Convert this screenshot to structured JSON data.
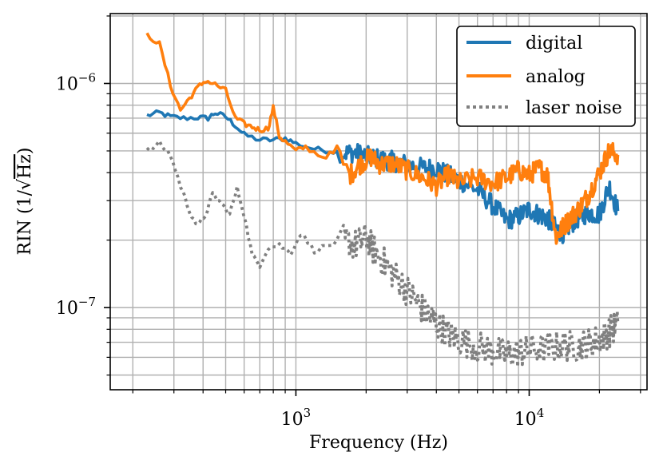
{
  "chart_data": {
    "type": "line",
    "title": "",
    "xlabel": "Frequency (Hz)",
    "ylabel": "RIN (1/√Hz)",
    "ylabel_prefix": "RIN (1/",
    "ylabel_root": "Hz",
    "ylabel_suffix": ")",
    "xscale": "log",
    "yscale": "log",
    "xlim": [
      160,
      32000
    ],
    "ylim": [
      4.3e-08,
      2.05e-06
    ],
    "grid": true,
    "legend_position": "top-right",
    "x_tick_labels": [
      {
        "value": 1000,
        "base": "10",
        "exp": "3"
      },
      {
        "value": 10000,
        "base": "10",
        "exp": "4"
      }
    ],
    "y_tick_labels": [
      {
        "value": 1e-07,
        "base": "10",
        "exp": "−7"
      },
      {
        "value": 1e-06,
        "base": "10",
        "exp": "−6"
      }
    ],
    "series": [
      {
        "name": "digital",
        "color": "#1f77b4",
        "style": "solid",
        "points": [
          [
            230,
            7.2e-07
          ],
          [
            260,
            7.4e-07
          ],
          [
            290,
            7.1e-07
          ],
          [
            330,
            7e-07
          ],
          [
            380,
            7.05e-07
          ],
          [
            420,
            7e-07
          ],
          [
            450,
            7.4e-07
          ],
          [
            500,
            7.1e-07
          ],
          [
            550,
            6.5e-07
          ],
          [
            600,
            5.9e-07
          ],
          [
            700,
            5.6e-07
          ],
          [
            800,
            5.6e-07
          ],
          [
            900,
            5.7e-07
          ],
          [
            1000,
            5.4e-07
          ],
          [
            1200,
            5.1e-07
          ],
          [
            1400,
            5e-07
          ],
          [
            1600,
            4.9e-07
          ],
          [
            1800,
            4.9e-07
          ],
          [
            2000,
            4.75e-07
          ],
          [
            2300,
            4.6e-07
          ],
          [
            2600,
            4.5e-07
          ],
          [
            3000,
            4.35e-07
          ],
          [
            3500,
            4.2e-07
          ],
          [
            4000,
            4.2e-07
          ],
          [
            4500,
            3.9e-07
          ],
          [
            5000,
            3.7e-07
          ],
          [
            6000,
            3.35e-07
          ],
          [
            7000,
            2.85e-07
          ],
          [
            8000,
            2.45e-07
          ],
          [
            9000,
            2.55e-07
          ],
          [
            10000,
            2.75e-07
          ],
          [
            11000,
            2.6e-07
          ],
          [
            12000,
            2.5e-07
          ],
          [
            13000,
            2.25e-07
          ],
          [
            14000,
            2.15e-07
          ],
          [
            15000,
            2.35e-07
          ],
          [
            16500,
            2.55e-07
          ],
          [
            18000,
            2.65e-07
          ],
          [
            20000,
            2.6e-07
          ],
          [
            22000,
            3.5e-07
          ],
          [
            24000,
            2.7e-07
          ]
        ]
      },
      {
        "name": "analog",
        "color": "#ff7f0e",
        "style": "solid",
        "points": [
          [
            230,
            1.65e-06
          ],
          [
            260,
            1.5e-06
          ],
          [
            290,
            9.8e-07
          ],
          [
            320,
            7.6e-07
          ],
          [
            350,
            8.6e-07
          ],
          [
            380,
            9.6e-07
          ],
          [
            410,
            1.03e-06
          ],
          [
            450,
            9.9e-07
          ],
          [
            500,
            9.3e-07
          ],
          [
            550,
            7e-07
          ],
          [
            600,
            6.6e-07
          ],
          [
            650,
            6.4e-07
          ],
          [
            700,
            6.2e-07
          ],
          [
            760,
            6.3e-07
          ],
          [
            800,
            7.8e-07
          ],
          [
            850,
            5.8e-07
          ],
          [
            900,
            5.5e-07
          ],
          [
            1000,
            5e-07
          ],
          [
            1100,
            5.2e-07
          ],
          [
            1300,
            4.7e-07
          ],
          [
            1500,
            4.95e-07
          ],
          [
            1700,
            3.9e-07
          ],
          [
            1900,
            4.4e-07
          ],
          [
            2100,
            4.7e-07
          ],
          [
            2300,
            4.35e-07
          ],
          [
            2600,
            4.4e-07
          ],
          [
            3000,
            4.1e-07
          ],
          [
            3500,
            3.8e-07
          ],
          [
            4000,
            3.5e-07
          ],
          [
            4500,
            3.9e-07
          ],
          [
            5000,
            3.6e-07
          ],
          [
            6000,
            3.8e-07
          ],
          [
            7000,
            3.6e-07
          ],
          [
            8000,
            3.8e-07
          ],
          [
            9000,
            4.1e-07
          ],
          [
            10000,
            3.9e-07
          ],
          [
            11000,
            4.2e-07
          ],
          [
            12000,
            3.9e-07
          ],
          [
            13000,
            2.05e-07
          ],
          [
            14000,
            2.3e-07
          ],
          [
            15000,
            2.5e-07
          ],
          [
            16500,
            2.8e-07
          ],
          [
            18000,
            3.2e-07
          ],
          [
            20000,
            4e-07
          ],
          [
            22000,
            5e-07
          ],
          [
            24000,
            4.8e-07
          ]
        ]
      },
      {
        "name": "laser noise",
        "color": "#808080",
        "style": "dotted",
        "points": [
          [
            230,
            5e-07
          ],
          [
            260,
            5.4e-07
          ],
          [
            290,
            4.8e-07
          ],
          [
            320,
            3.5e-07
          ],
          [
            350,
            2.7e-07
          ],
          [
            380,
            2.3e-07
          ],
          [
            410,
            2.6e-07
          ],
          [
            440,
            3.2e-07
          ],
          [
            480,
            2.9e-07
          ],
          [
            520,
            2.6e-07
          ],
          [
            560,
            3.4e-07
          ],
          [
            600,
            2.6e-07
          ],
          [
            650,
            1.7e-07
          ],
          [
            700,
            1.55e-07
          ],
          [
            760,
            1.85e-07
          ],
          [
            850,
            1.9e-07
          ],
          [
            950,
            1.75e-07
          ],
          [
            1050,
            2.15e-07
          ],
          [
            1200,
            1.8e-07
          ],
          [
            1400,
            1.9e-07
          ],
          [
            1600,
            2e-07
          ],
          [
            1800,
            1.9e-07
          ],
          [
            2000,
            2.05e-07
          ],
          [
            2200,
            1.75e-07
          ],
          [
            2500,
            1.5e-07
          ],
          [
            2800,
            1.3e-07
          ],
          [
            3200,
            1.1e-07
          ],
          [
            3600,
            9.5e-08
          ],
          [
            4000,
            8.5e-08
          ],
          [
            4500,
            7.6e-08
          ],
          [
            5000,
            7.2e-08
          ],
          [
            6000,
            6.7e-08
          ],
          [
            7000,
            6.4e-08
          ],
          [
            8000,
            6.2e-08
          ],
          [
            9000,
            6.3e-08
          ],
          [
            10000,
            6.5e-08
          ],
          [
            12000,
            6.6e-08
          ],
          [
            14000,
            6.8e-08
          ],
          [
            16000,
            6.7e-08
          ],
          [
            18000,
            6.9e-08
          ],
          [
            20000,
            7.2e-08
          ],
          [
            22000,
            7.8e-08
          ],
          [
            24000,
            8.4e-08
          ]
        ]
      }
    ]
  }
}
